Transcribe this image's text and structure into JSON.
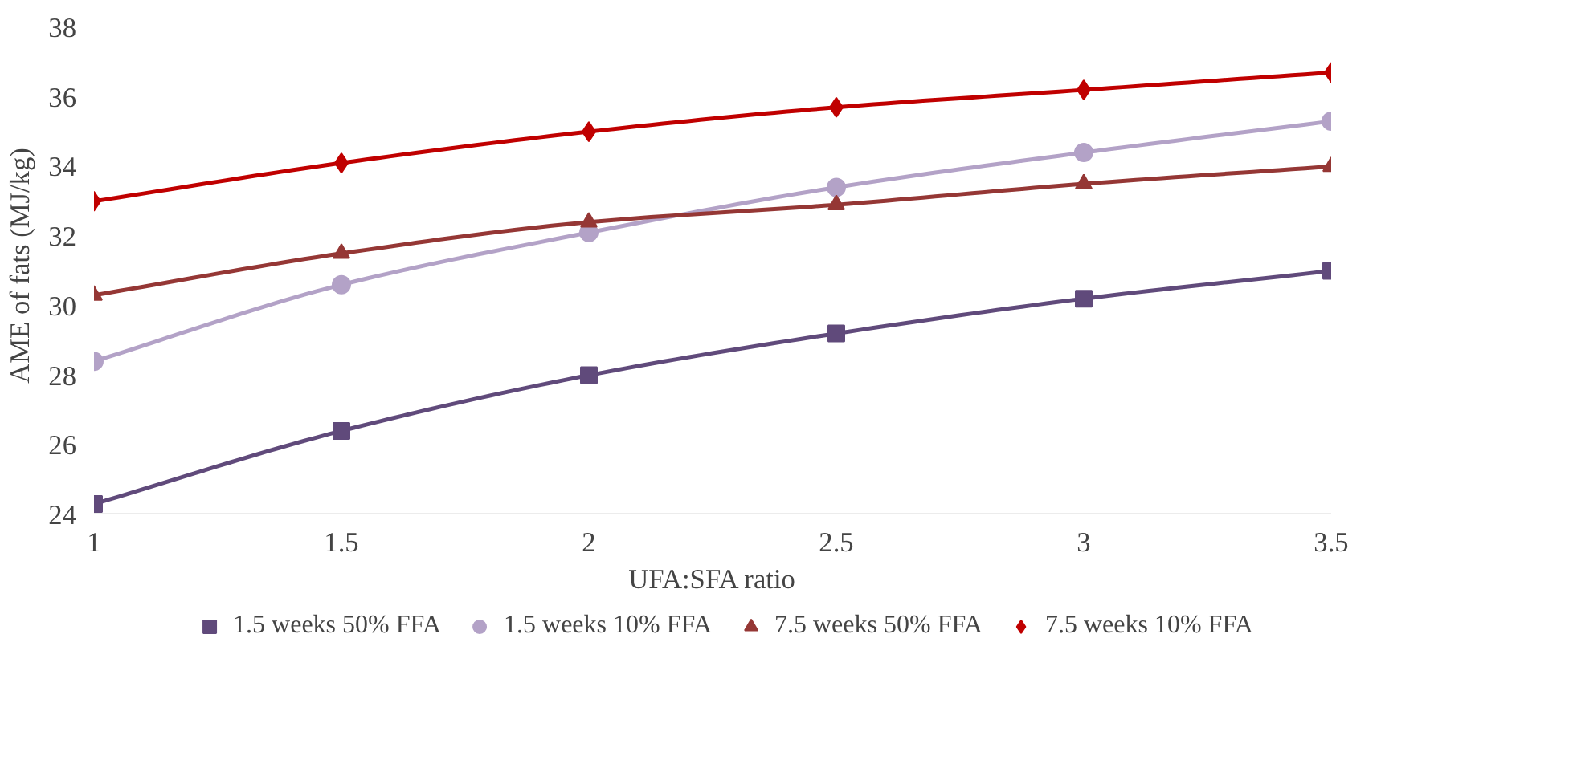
{
  "chart_data": {
    "type": "line",
    "xlabel": "UFA:SFA ratio",
    "ylabel": "AME of fats (MJ/kg)",
    "x": [
      1,
      1.5,
      2,
      2.5,
      3,
      3.5
    ],
    "xlim": [
      1,
      3.5
    ],
    "xticks": [
      1,
      1.5,
      2,
      2.5,
      3,
      3.5
    ],
    "ylim": [
      24,
      38
    ],
    "yticks": [
      24,
      26,
      28,
      30,
      32,
      34,
      36,
      38
    ],
    "grid": false,
    "legend": "bottom",
    "series": [
      {
        "name": "1.5 weeks 50% FFA",
        "color": "#604a7b",
        "marker": "square",
        "values": [
          24.3,
          26.4,
          28.0,
          29.2,
          30.2,
          31.0
        ]
      },
      {
        "name": "1.5 weeks 10% FFA",
        "color": "#b3a2c7",
        "marker": "circle",
        "values": [
          28.4,
          30.6,
          32.1,
          33.4,
          34.4,
          35.3
        ]
      },
      {
        "name": "7.5 weeks 50% FFA",
        "color": "#953735",
        "marker": "triangle",
        "values": [
          30.3,
          31.5,
          32.4,
          32.9,
          33.5,
          34.0
        ]
      },
      {
        "name": "7.5 weeks 10% FFA",
        "color": "#c00000",
        "marker": "diamond",
        "values": [
          33.0,
          34.1,
          35.0,
          35.7,
          36.2,
          36.7
        ]
      }
    ]
  }
}
